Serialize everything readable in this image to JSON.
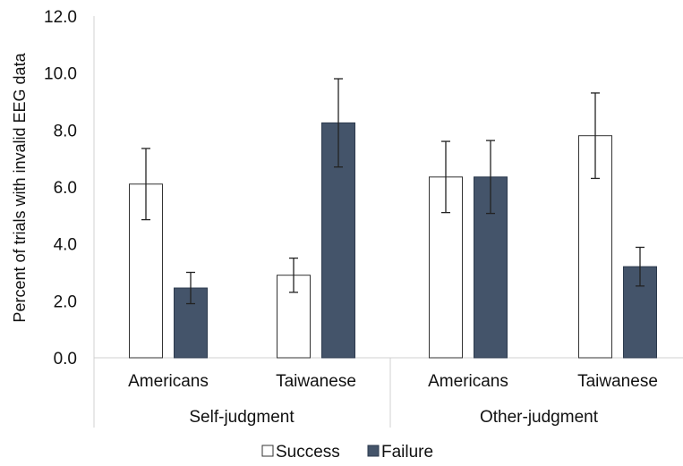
{
  "chart_data": {
    "type": "bar",
    "title": "",
    "ylabel": "Percent of trials with invalid EEG data",
    "ylim": [
      0,
      12
    ],
    "yticks": [
      "0.0",
      "2.0",
      "4.0",
      "6.0",
      "8.0",
      "10.0",
      "12.0"
    ],
    "groups": [
      {
        "label": "Self-judgment",
        "categories": [
          "Americans",
          "Taiwanese"
        ]
      },
      {
        "label": "Other-judgment",
        "categories": [
          "Americans",
          "Taiwanese"
        ]
      }
    ],
    "series": [
      {
        "name": "Success",
        "color": "#ffffff",
        "values": [
          6.1,
          2.9,
          6.35,
          7.8
        ],
        "errors": [
          1.25,
          0.6,
          1.25,
          1.5
        ]
      },
      {
        "name": "Failure",
        "color": "#44546a",
        "values": [
          2.45,
          8.25,
          6.35,
          3.2
        ],
        "errors": [
          0.55,
          1.55,
          1.28,
          0.68
        ]
      }
    ],
    "legend_position": "bottom",
    "grid": false
  }
}
